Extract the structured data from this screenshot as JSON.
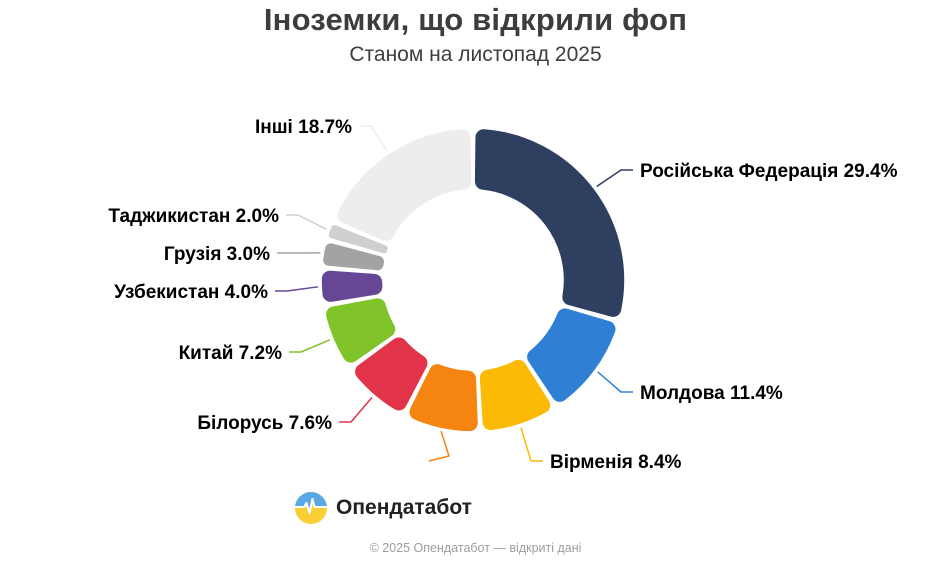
{
  "title": "Іноземки, що відкрили фоп",
  "subtitle": "Станом на листопад 2025",
  "logo_text": "Опендатабот",
  "footer": "© 2025 Опендатабот — відкриті дані",
  "chart_data": {
    "type": "pie",
    "subtype": "donut",
    "title": "Іноземки, що відкрили фоп",
    "subtitle": "Станом на листопад 2025",
    "unit": "%",
    "legend": "none",
    "label_format": "name value%",
    "slices": [
      {
        "label": "Російська Федерація",
        "value": 29.4,
        "color": "#2e3f5f"
      },
      {
        "label": "Молдова",
        "value": 11.4,
        "color": "#2f80d5"
      },
      {
        "label": "Вірменія",
        "value": 8.4,
        "color": "#fcba05"
      },
      {
        "label": "",
        "value": 8.3,
        "color": "#f58411"
      },
      {
        "label": "Білорусь",
        "value": 7.6,
        "color": "#e23449"
      },
      {
        "label": "Китай",
        "value": 7.2,
        "color": "#80c42a"
      },
      {
        "label": "Узбекистан",
        "value": 4.0,
        "color": "#654796"
      },
      {
        "label": "Грузія",
        "value": 3.0,
        "color": "#a3a3a3"
      },
      {
        "label": "Таджикистан",
        "value": 2.0,
        "color": "#cfcfcf"
      },
      {
        "label": "Інші",
        "value": 18.7,
        "color": "#ededed"
      }
    ]
  }
}
